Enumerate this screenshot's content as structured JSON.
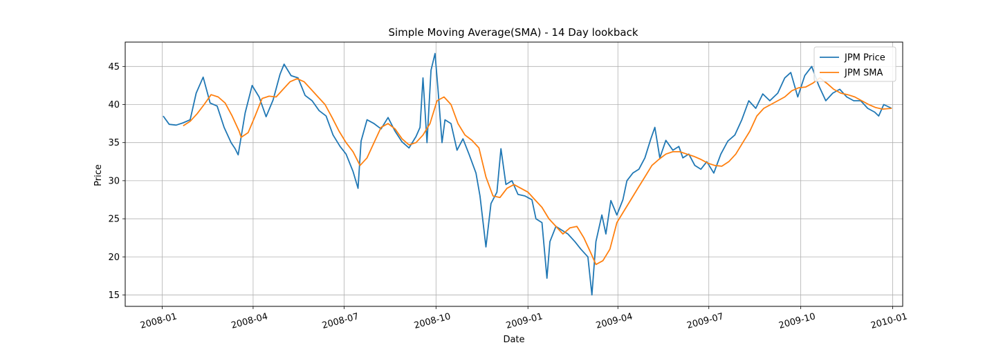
{
  "chart_data": {
    "type": "line",
    "title": "Simple Moving Average(SMA) - 14 Day lookback",
    "xlabel": "Date",
    "ylabel": "Price",
    "xlim": [
      "2007-11-25",
      "2010-01-11"
    ],
    "ylim": [
      13.5,
      48.2
    ],
    "x_ticks": [
      "2008-01",
      "2008-04",
      "2008-07",
      "2008-10",
      "2009-01",
      "2009-04",
      "2009-07",
      "2009-10",
      "2010-01"
    ],
    "y_ticks": [
      15,
      20,
      25,
      30,
      35,
      40,
      45
    ],
    "grid": true,
    "legend_position": "top-right",
    "series": [
      {
        "name": "JPM Price",
        "color": "#1f77b4",
        "points": [
          [
            "2008-01-02",
            38.5
          ],
          [
            "2008-01-08",
            37.4
          ],
          [
            "2008-01-15",
            37.3
          ],
          [
            "2008-01-22",
            37.6
          ],
          [
            "2008-01-29",
            38.0
          ],
          [
            "2008-02-04",
            41.5
          ],
          [
            "2008-02-11",
            43.6
          ],
          [
            "2008-02-18",
            40.2
          ],
          [
            "2008-02-25",
            39.8
          ],
          [
            "2008-03-03",
            37.0
          ],
          [
            "2008-03-10",
            35.0
          ],
          [
            "2008-03-14",
            34.2
          ],
          [
            "2008-03-17",
            33.4
          ],
          [
            "2008-03-24",
            38.9
          ],
          [
            "2008-03-31",
            42.5
          ],
          [
            "2008-04-07",
            41.0
          ],
          [
            "2008-04-14",
            38.4
          ],
          [
            "2008-04-21",
            40.6
          ],
          [
            "2008-04-28",
            44.0
          ],
          [
            "2008-05-02",
            45.3
          ],
          [
            "2008-05-09",
            43.8
          ],
          [
            "2008-05-16",
            43.5
          ],
          [
            "2008-05-23",
            41.2
          ],
          [
            "2008-05-30",
            40.5
          ],
          [
            "2008-06-06",
            39.2
          ],
          [
            "2008-06-13",
            38.5
          ],
          [
            "2008-06-20",
            36.0
          ],
          [
            "2008-06-27",
            34.5
          ],
          [
            "2008-07-03",
            33.5
          ],
          [
            "2008-07-10",
            31.2
          ],
          [
            "2008-07-15",
            29.0
          ],
          [
            "2008-07-18",
            35.2
          ],
          [
            "2008-07-24",
            38.0
          ],
          [
            "2008-07-31",
            37.5
          ],
          [
            "2008-08-07",
            36.8
          ],
          [
            "2008-08-14",
            38.3
          ],
          [
            "2008-08-21",
            36.5
          ],
          [
            "2008-08-28",
            35.1
          ],
          [
            "2008-09-04",
            34.3
          ],
          [
            "2008-09-11",
            35.8
          ],
          [
            "2008-09-15",
            37.0
          ],
          [
            "2008-09-18",
            43.5
          ],
          [
            "2008-09-22",
            35.0
          ],
          [
            "2008-09-26",
            44.5
          ],
          [
            "2008-09-30",
            46.7
          ],
          [
            "2008-10-03",
            42.0
          ],
          [
            "2008-10-07",
            35.0
          ],
          [
            "2008-10-10",
            38.0
          ],
          [
            "2008-10-16",
            37.5
          ],
          [
            "2008-10-22",
            34.0
          ],
          [
            "2008-10-28",
            35.5
          ],
          [
            "2008-11-03",
            33.5
          ],
          [
            "2008-11-10",
            31.0
          ],
          [
            "2008-11-14",
            28.0
          ],
          [
            "2008-11-20",
            21.3
          ],
          [
            "2008-11-25",
            27.0
          ],
          [
            "2008-12-01",
            28.5
          ],
          [
            "2008-12-05",
            34.2
          ],
          [
            "2008-12-10",
            29.5
          ],
          [
            "2008-12-16",
            30.0
          ],
          [
            "2008-12-22",
            28.2
          ],
          [
            "2008-12-29",
            28.0
          ],
          [
            "2009-01-05",
            27.5
          ],
          [
            "2009-01-09",
            25.0
          ],
          [
            "2009-01-15",
            24.5
          ],
          [
            "2009-01-20",
            17.2
          ],
          [
            "2009-01-23",
            22.0
          ],
          [
            "2009-01-29",
            24.0
          ],
          [
            "2009-02-04",
            23.5
          ],
          [
            "2009-02-10",
            23.0
          ],
          [
            "2009-02-17",
            22.0
          ],
          [
            "2009-02-23",
            21.0
          ],
          [
            "2009-03-02",
            20.0
          ],
          [
            "2009-03-06",
            15.0
          ],
          [
            "2009-03-10",
            22.0
          ],
          [
            "2009-03-16",
            25.5
          ],
          [
            "2009-03-20",
            23.0
          ],
          [
            "2009-03-25",
            27.4
          ],
          [
            "2009-03-31",
            25.5
          ],
          [
            "2009-04-06",
            27.5
          ],
          [
            "2009-04-10",
            30.0
          ],
          [
            "2009-04-16",
            31.0
          ],
          [
            "2009-04-22",
            31.5
          ],
          [
            "2009-04-28",
            33.0
          ],
          [
            "2009-05-04",
            35.5
          ],
          [
            "2009-05-08",
            37.0
          ],
          [
            "2009-05-13",
            33.0
          ],
          [
            "2009-05-19",
            35.3
          ],
          [
            "2009-05-26",
            34.0
          ],
          [
            "2009-06-01",
            34.5
          ],
          [
            "2009-06-05",
            33.0
          ],
          [
            "2009-06-11",
            33.5
          ],
          [
            "2009-06-17",
            32.0
          ],
          [
            "2009-06-23",
            31.5
          ],
          [
            "2009-06-29",
            32.5
          ],
          [
            "2009-07-06",
            31.0
          ],
          [
            "2009-07-13",
            33.5
          ],
          [
            "2009-07-20",
            35.2
          ],
          [
            "2009-07-27",
            36.0
          ],
          [
            "2009-08-03",
            38.0
          ],
          [
            "2009-08-10",
            40.5
          ],
          [
            "2009-08-17",
            39.5
          ],
          [
            "2009-08-24",
            41.4
          ],
          [
            "2009-08-31",
            40.5
          ],
          [
            "2009-09-08",
            41.5
          ],
          [
            "2009-09-15",
            43.5
          ],
          [
            "2009-09-21",
            44.2
          ],
          [
            "2009-09-28",
            41.0
          ],
          [
            "2009-10-05",
            43.8
          ],
          [
            "2009-10-12",
            45.0
          ],
          [
            "2009-10-19",
            42.5
          ],
          [
            "2009-10-26",
            40.5
          ],
          [
            "2009-11-02",
            41.5
          ],
          [
            "2009-11-09",
            42.0
          ],
          [
            "2009-11-16",
            41.0
          ],
          [
            "2009-11-23",
            40.5
          ],
          [
            "2009-11-30",
            40.5
          ],
          [
            "2009-12-07",
            39.5
          ],
          [
            "2009-12-14",
            39.0
          ],
          [
            "2009-12-18",
            38.5
          ],
          [
            "2009-12-23",
            40.0
          ],
          [
            "2009-12-31",
            39.5
          ]
        ]
      },
      {
        "name": "JPM SMA",
        "color": "#ff7f0e",
        "points": [
          [
            "2008-01-22",
            37.2
          ],
          [
            "2008-01-29",
            37.8
          ],
          [
            "2008-02-05",
            38.8
          ],
          [
            "2008-02-12",
            40.0
          ],
          [
            "2008-02-19",
            41.3
          ],
          [
            "2008-02-26",
            41.0
          ],
          [
            "2008-03-04",
            40.2
          ],
          [
            "2008-03-11",
            38.5
          ],
          [
            "2008-03-18",
            36.5
          ],
          [
            "2008-03-20",
            35.7
          ],
          [
            "2008-03-27",
            36.3
          ],
          [
            "2008-04-03",
            38.5
          ],
          [
            "2008-04-10",
            40.8
          ],
          [
            "2008-04-17",
            41.1
          ],
          [
            "2008-04-24",
            41.0
          ],
          [
            "2008-05-01",
            42.0
          ],
          [
            "2008-05-08",
            43.0
          ],
          [
            "2008-05-15",
            43.4
          ],
          [
            "2008-05-22",
            43.0
          ],
          [
            "2008-05-29",
            42.0
          ],
          [
            "2008-06-05",
            41.0
          ],
          [
            "2008-06-12",
            40.0
          ],
          [
            "2008-06-19",
            38.3
          ],
          [
            "2008-06-26",
            36.5
          ],
          [
            "2008-07-03",
            35.0
          ],
          [
            "2008-07-10",
            33.8
          ],
          [
            "2008-07-17",
            32.0
          ],
          [
            "2008-07-24",
            33.0
          ],
          [
            "2008-07-31",
            35.0
          ],
          [
            "2008-08-07",
            37.0
          ],
          [
            "2008-08-14",
            37.5
          ],
          [
            "2008-08-21",
            36.8
          ],
          [
            "2008-08-28",
            35.5
          ],
          [
            "2008-09-04",
            34.7
          ],
          [
            "2008-09-11",
            35.0
          ],
          [
            "2008-09-18",
            36.0
          ],
          [
            "2008-09-25",
            37.5
          ],
          [
            "2008-10-02",
            40.5
          ],
          [
            "2008-10-09",
            41.0
          ],
          [
            "2008-10-16",
            40.0
          ],
          [
            "2008-10-23",
            37.5
          ],
          [
            "2008-10-30",
            36.0
          ],
          [
            "2008-11-06",
            35.3
          ],
          [
            "2008-11-13",
            34.3
          ],
          [
            "2008-11-20",
            30.5
          ],
          [
            "2008-11-27",
            28.0
          ],
          [
            "2008-12-04",
            27.8
          ],
          [
            "2008-12-11",
            29.0
          ],
          [
            "2008-12-18",
            29.5
          ],
          [
            "2008-12-25",
            29.0
          ],
          [
            "2009-01-01",
            28.5
          ],
          [
            "2009-01-08",
            27.5
          ],
          [
            "2009-01-15",
            26.5
          ],
          [
            "2009-01-22",
            25.0
          ],
          [
            "2009-01-29",
            24.0
          ],
          [
            "2009-02-05",
            23.0
          ],
          [
            "2009-02-12",
            23.8
          ],
          [
            "2009-02-19",
            24.0
          ],
          [
            "2009-02-26",
            22.5
          ],
          [
            "2009-03-05",
            20.5
          ],
          [
            "2009-03-10",
            19.0
          ],
          [
            "2009-03-17",
            19.5
          ],
          [
            "2009-03-24",
            21.0
          ],
          [
            "2009-03-31",
            24.5
          ],
          [
            "2009-04-07",
            26.0
          ],
          [
            "2009-04-14",
            27.5
          ],
          [
            "2009-04-21",
            29.0
          ],
          [
            "2009-04-28",
            30.5
          ],
          [
            "2009-05-05",
            32.0
          ],
          [
            "2009-05-12",
            32.8
          ],
          [
            "2009-05-19",
            33.5
          ],
          [
            "2009-05-26",
            33.8
          ],
          [
            "2009-06-02",
            33.8
          ],
          [
            "2009-06-09",
            33.5
          ],
          [
            "2009-06-16",
            33.2
          ],
          [
            "2009-06-23",
            32.8
          ],
          [
            "2009-06-30",
            32.3
          ],
          [
            "2009-07-07",
            32.0
          ],
          [
            "2009-07-14",
            31.9
          ],
          [
            "2009-07-21",
            32.5
          ],
          [
            "2009-07-28",
            33.5
          ],
          [
            "2009-08-04",
            35.0
          ],
          [
            "2009-08-11",
            36.5
          ],
          [
            "2009-08-18",
            38.5
          ],
          [
            "2009-08-25",
            39.5
          ],
          [
            "2009-09-01",
            40.0
          ],
          [
            "2009-09-08",
            40.5
          ],
          [
            "2009-09-15",
            41.0
          ],
          [
            "2009-09-22",
            41.8
          ],
          [
            "2009-09-29",
            42.2
          ],
          [
            "2009-10-06",
            42.3
          ],
          [
            "2009-10-13",
            42.8
          ],
          [
            "2009-10-20",
            43.5
          ],
          [
            "2009-10-27",
            42.8
          ],
          [
            "2009-11-03",
            42.0
          ],
          [
            "2009-11-10",
            41.5
          ],
          [
            "2009-11-17",
            41.3
          ],
          [
            "2009-11-24",
            41.0
          ],
          [
            "2009-12-01",
            40.5
          ],
          [
            "2009-12-08",
            40.0
          ],
          [
            "2009-12-15",
            39.6
          ],
          [
            "2009-12-22",
            39.4
          ],
          [
            "2009-12-31",
            39.5
          ]
        ]
      }
    ]
  }
}
